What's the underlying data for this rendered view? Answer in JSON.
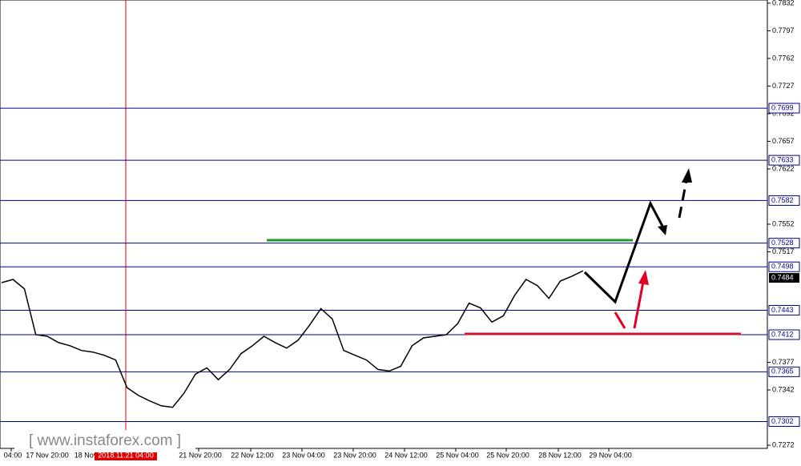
{
  "chart_data": {
    "type": "line",
    "values": [
      0.7478,
      0.7482,
      0.747,
      0.7412,
      0.741,
      0.7402,
      0.7398,
      0.7392,
      0.739,
      0.7386,
      0.738,
      0.7345,
      0.7335,
      0.7328,
      0.7322,
      0.732,
      0.7338,
      0.7362,
      0.737,
      0.7355,
      0.7368,
      0.7388,
      0.7398,
      0.741,
      0.7402,
      0.7395,
      0.7405,
      0.7424,
      0.7445,
      0.7432,
      0.7392,
      0.7386,
      0.738,
      0.7368,
      0.7366,
      0.7372,
      0.7398,
      0.7408,
      0.741,
      0.7412,
      0.7426,
      0.7452,
      0.7446,
      0.7428,
      0.7436,
      0.7462,
      0.7482,
      0.7474,
      0.7458,
      0.748,
      0.7486,
      0.7493
    ],
    "color": "#000000",
    "ylim": [
      0.7268,
      0.7836
    ],
    "yticks": [
      0.7832,
      0.7797,
      0.7762,
      0.7727,
      0.7692,
      0.7657,
      0.7622,
      0.7552,
      0.7517,
      0.7377,
      0.7342,
      0.7272
    ],
    "level_lines": [
      0.7699,
      0.7633,
      0.7582,
      0.7528,
      0.7498,
      0.7443,
      0.7412,
      0.7365,
      0.7302
    ],
    "level_color": "#00008b",
    "current_price": 0.7484,
    "x_labels": [
      "04:00",
      "17 Nov 20:00",
      "18 Nov",
      "21 Nov 20:00",
      "22 Nov 12:00",
      "23 Nov 04:00",
      "23 Nov 20:00",
      "24 Nov 12:00",
      "25 Nov 04:00",
      "25 Nov 20:00",
      "28 Nov 12:00",
      "29 Nov 04:00"
    ],
    "cursor_label": "2018.11.21 04:00",
    "watermark": "[ www.instaforex.com ]"
  }
}
